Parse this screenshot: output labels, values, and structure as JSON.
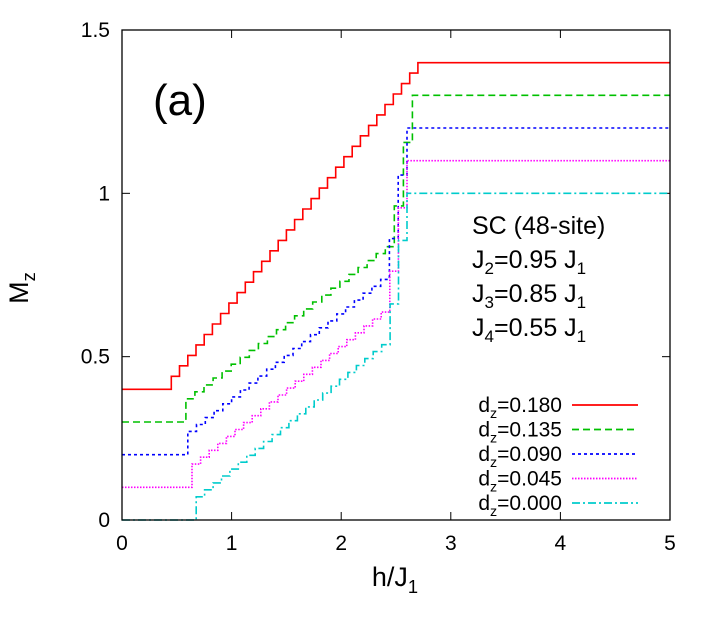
{
  "chart_data": {
    "type": "line",
    "panel_label": "(a)",
    "xlabel": {
      "main": "h/J",
      "sub": "1"
    },
    "ylabel": {
      "main": "M",
      "sub": "z"
    },
    "xlim": [
      0,
      5
    ],
    "ylim": [
      0,
      1.5
    ],
    "xticks": [
      "0",
      "1",
      "2",
      "3",
      "4",
      "5"
    ],
    "yticks": [
      "0",
      "0.5",
      "1",
      "1.5"
    ],
    "grid": false,
    "legend_position": "bottom-right",
    "annotation": [
      {
        "text": "SC (48-site)"
      },
      {
        "main": "J",
        "sub": "2",
        "rest": "=0.95 J",
        "sub2": "1"
      },
      {
        "main": "J",
        "sub": "3",
        "rest": "=0.85 J",
        "sub2": "1"
      },
      {
        "main": "J",
        "sub": "4",
        "rest": "=0.55 J",
        "sub2": "1"
      }
    ],
    "series": [
      {
        "label_main": "d",
        "label_sub": "z",
        "label_rest": "=0.180",
        "color": "#ff0000",
        "dash": "none",
        "offset": 0.4,
        "start_x": 0.45,
        "end_x": 2.7,
        "top": 1.0,
        "base": 0.0
      },
      {
        "label_main": "d",
        "label_sub": "z",
        "label_rest": "=0.135",
        "color": "#00c000",
        "dash": "dashed",
        "offset": 0.3,
        "start_x": 0.5,
        "end_x": 2.65,
        "top": 1.0,
        "base": 0.0
      },
      {
        "label_main": "d",
        "label_sub": "z",
        "label_rest": "=0.090",
        "color": "#0000ff",
        "dash": "dotted",
        "offset": 0.2,
        "start_x": 0.52,
        "end_x": 2.6,
        "top": 1.0,
        "base": 0.0
      },
      {
        "label_main": "d",
        "label_sub": "z",
        "label_rest": "=0.045",
        "color": "#ff00ff",
        "dash": "fine-dotted",
        "offset": 0.1,
        "start_x": 0.56,
        "end_x": 2.6,
        "top": 1.0,
        "base": 0.0
      },
      {
        "label_main": "d",
        "label_sub": "z",
        "label_rest": "=0.000",
        "color": "#00cccc",
        "dash": "dash-dot",
        "offset": 0.0,
        "start_x": 0.6,
        "end_x": 2.6,
        "top": 1.0,
        "base": 0.0
      }
    ]
  }
}
